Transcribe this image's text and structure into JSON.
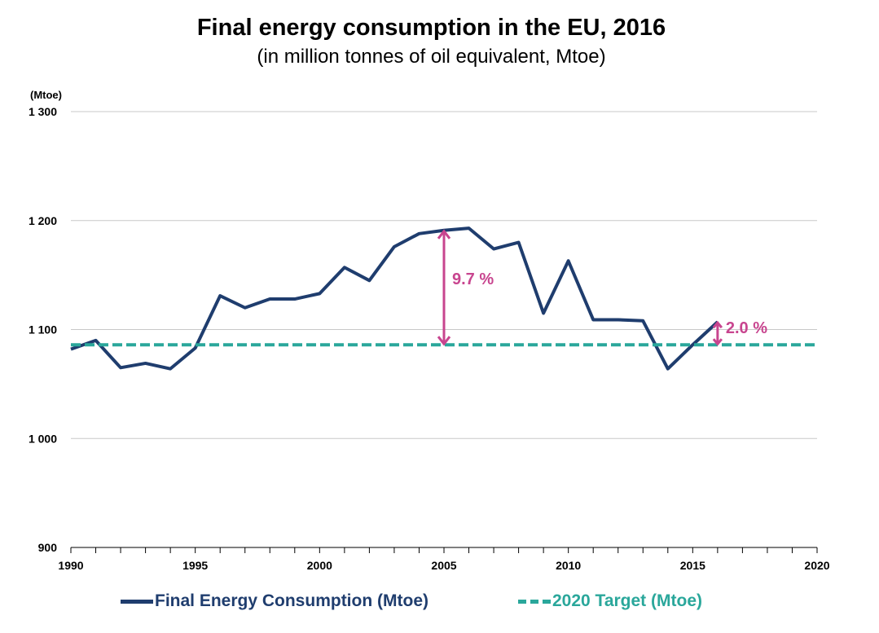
{
  "chart_data": {
    "type": "line",
    "title": "Final energy consumption in the EU, 2016",
    "subtitle": "(in million tonnes of oil equivalent, Mtoe)",
    "ylabel": "(Mtoe)",
    "xlim": [
      1990,
      2020
    ],
    "ylim": [
      900,
      1300
    ],
    "x_ticks": [
      "1990",
      "1995",
      "2000",
      "2005",
      "2010",
      "2015",
      "2020"
    ],
    "y_ticks": [
      {
        "value": 900,
        "label": "900"
      },
      {
        "value": 1000,
        "label": "1 000"
      },
      {
        "value": 1100,
        "label": "1 100"
      },
      {
        "value": 1200,
        "label": "1 200"
      },
      {
        "value": 1300,
        "label": "1 300"
      }
    ],
    "grid": "horizontal",
    "legend_position": "bottom",
    "series": [
      {
        "name": "Final Energy Consumption (Mtoe)",
        "color": "#1f3d6e",
        "style": "solid",
        "x": [
          1990,
          1991,
          1992,
          1993,
          1994,
          1995,
          1996,
          1997,
          1998,
          1999,
          2000,
          2001,
          2002,
          2003,
          2004,
          2005,
          2006,
          2007,
          2008,
          2009,
          2010,
          2011,
          2012,
          2013,
          2014,
          2015,
          2016
        ],
        "values": [
          1082,
          1090,
          1065,
          1069,
          1064,
          1083,
          1131,
          1120,
          1128,
          1128,
          1133,
          1157,
          1145,
          1176,
          1188,
          1191,
          1193,
          1174,
          1180,
          1115,
          1163,
          1109,
          1109,
          1108,
          1064,
          1086,
          1107
        ]
      },
      {
        "name": "2020 Target (Mtoe)",
        "color": "#2aa79b",
        "style": "dashed",
        "x": [
          1990,
          2020
        ],
        "values": [
          1086,
          1086
        ]
      }
    ],
    "annotations": [
      {
        "text": "9.7 %",
        "x": 2005,
        "from": 1086,
        "to": 1191,
        "color": "#c8458f"
      },
      {
        "text": "2.0 %",
        "x": 2016,
        "from": 1086,
        "to": 1107,
        "color": "#c8458f"
      }
    ]
  }
}
